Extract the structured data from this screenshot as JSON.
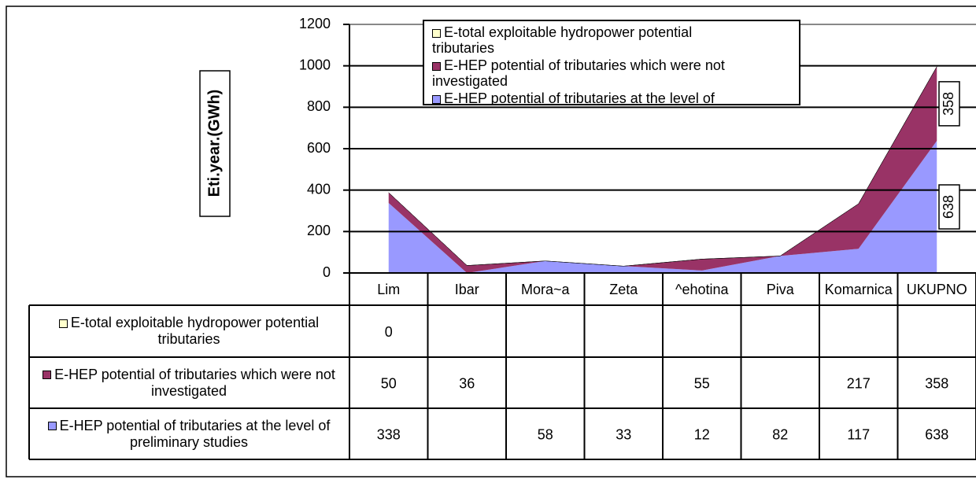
{
  "chart_data": {
    "type": "stacked_area",
    "y_label": "Eti.year.(GWh)",
    "categories": [
      "Lim",
      "Ibar",
      "Mora~a",
      "Zeta",
      "^ehotina",
      "Piva",
      "Komarnica",
      "UKUPNO"
    ],
    "series": [
      {
        "name": "E-total exploitable hydropower potential tributaries",
        "color": "#ffffcc",
        "values": [
          0,
          null,
          null,
          null,
          null,
          null,
          null,
          null
        ]
      },
      {
        "name": "E-HEP potential of tributaries which were not investigated",
        "color": "#993366",
        "values": [
          50,
          36,
          null,
          null,
          55,
          null,
          217,
          358
        ]
      },
      {
        "name": "E-HEP potential of tributaries at the level of preliminary studies",
        "color": "#9999ff",
        "values": [
          338,
          null,
          58,
          33,
          12,
          82,
          117,
          638
        ]
      }
    ],
    "ylim": [
      0,
      1200
    ],
    "yticks": [
      0,
      200,
      400,
      600,
      800,
      1000,
      1200
    ],
    "grid": true
  }
}
